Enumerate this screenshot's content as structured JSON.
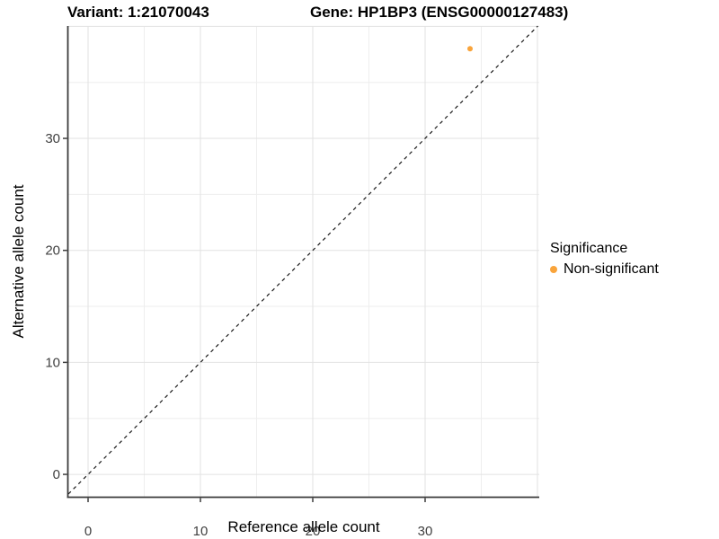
{
  "chart_data": {
    "type": "scatter",
    "title_left": "Variant: 1:21070043",
    "title_right": "Gene: HP1BP3 (ENSG00000127483)",
    "xlabel": "Reference allele count",
    "ylabel": "Alternative allele count",
    "xlim": [
      -1.76,
      40.16
    ],
    "ylim": [
      -2.0,
      40.03
    ],
    "x_ticks": [
      0,
      10,
      20,
      30
    ],
    "y_ticks": [
      0,
      10,
      20,
      30
    ],
    "grid_major": [
      0,
      10,
      20,
      30,
      40
    ],
    "grid_minor": [
      5,
      15,
      25,
      35
    ],
    "grid": true,
    "points": [
      {
        "x": 34,
        "y": 38,
        "series": "Non-significant"
      }
    ],
    "identity_line": {
      "equation": "y = x",
      "style": "dashed",
      "color": "#1A1A1A"
    },
    "legend": {
      "title": "Significance",
      "position": "right",
      "items": [
        {
          "label": "Non-significant",
          "color": "#F9A43B"
        }
      ]
    },
    "colors": {
      "point": "#F9A43B",
      "grid_major": "#E2E2E2",
      "grid_minor": "#EEEEEE",
      "axis_line": "#3C3C3C",
      "tick_label": "#404040",
      "title_text": "#000000",
      "background": "#FFFFFF"
    }
  }
}
